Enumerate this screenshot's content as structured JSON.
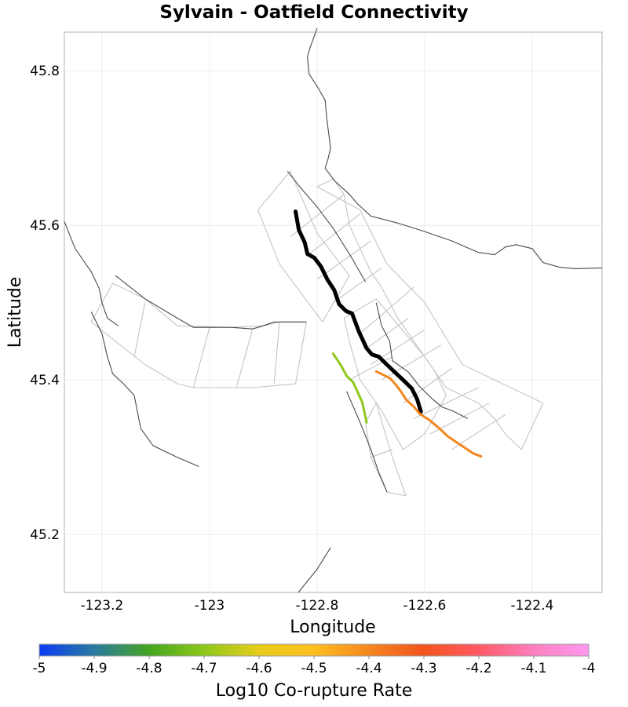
{
  "title": "Sylvain - Oatfield Connectivity",
  "xlabel": "Longitude",
  "ylabel": "Latitude",
  "colorbar": {
    "label": "Log10 Co-rupture Rate",
    "ticks": [
      "-5",
      "-4.9",
      "-4.8",
      "-4.7",
      "-4.6",
      "-4.5",
      "-4.4",
      "-4.3",
      "-4.2",
      "-4.1",
      "-4"
    ],
    "range": [
      -5,
      -4
    ],
    "colors": [
      "#0a3cf5",
      "#2a7aa0",
      "#45a520",
      "#8ec81a",
      "#e7cc1a",
      "#ffbf20",
      "#f5861e",
      "#f2541e",
      "#ff5a64",
      "#ff7fbf",
      "#ff99f0"
    ]
  },
  "x_ticks": [
    "-123.2",
    "-123",
    "-122.8",
    "-122.6",
    "-122.4"
  ],
  "y_ticks": [
    "45.8",
    "45.6",
    "45.4",
    "45.2"
  ],
  "chart_data": {
    "type": "line",
    "title": "Sylvain - Oatfield Connectivity",
    "xlabel": "Longitude",
    "ylabel": "Latitude",
    "xlim": [
      -123.27,
      -122.27
    ],
    "ylim": [
      45.125,
      45.85
    ],
    "grid": true,
    "series": [
      {
        "role": "selected-rupture",
        "color": "#000000",
        "points": [
          [
            -122.84,
            45.618
          ],
          [
            -122.834,
            45.594
          ],
          [
            -122.823,
            45.578
          ],
          [
            -122.818,
            45.563
          ],
          [
            -122.805,
            45.558
          ],
          [
            -122.793,
            45.547
          ],
          [
            -122.781,
            45.53
          ],
          [
            -122.768,
            45.516
          ],
          [
            -122.759,
            45.498
          ],
          [
            -122.746,
            45.489
          ],
          [
            -122.735,
            45.486
          ],
          [
            -122.722,
            45.462
          ],
          [
            -122.708,
            45.441
          ],
          [
            -122.698,
            45.433
          ],
          [
            -122.685,
            45.43
          ],
          [
            -122.672,
            45.421
          ],
          [
            -122.654,
            45.409
          ],
          [
            -122.64,
            45.4
          ],
          [
            -122.624,
            45.389
          ],
          [
            -122.614,
            45.375
          ],
          [
            -122.607,
            45.359
          ]
        ]
      },
      {
        "role": "co-rupture",
        "color": "#8ec81a",
        "log10_rate": -4.65,
        "points": [
          [
            -122.77,
            45.434
          ],
          [
            -122.755,
            45.418
          ],
          [
            -122.745,
            45.405
          ],
          [
            -122.733,
            45.397
          ],
          [
            -122.716,
            45.371
          ],
          [
            -122.708,
            45.345
          ]
        ]
      },
      {
        "role": "co-rupture",
        "color": "#f5861e",
        "log10_rate": -4.33,
        "points": [
          [
            -122.69,
            45.411
          ],
          [
            -122.678,
            45.407
          ],
          [
            -122.664,
            45.402
          ],
          [
            -122.655,
            45.395
          ],
          [
            -122.645,
            45.386
          ],
          [
            -122.634,
            45.374
          ],
          [
            -122.621,
            45.366
          ],
          [
            -122.609,
            45.356
          ],
          [
            -122.591,
            45.348
          ],
          [
            -122.579,
            45.341
          ],
          [
            -122.569,
            45.335
          ],
          [
            -122.557,
            45.327
          ],
          [
            -122.54,
            45.319
          ],
          [
            -122.525,
            45.312
          ],
          [
            -122.51,
            45.305
          ],
          [
            -122.495,
            45.301
          ]
        ]
      }
    ],
    "background_faults": [
      [
        [
          -122.8,
          45.855
        ],
        [
          -122.813,
          45.83
        ],
        [
          -122.818,
          45.818
        ],
        [
          -122.815,
          45.796
        ],
        [
          -122.8,
          45.78
        ],
        [
          -122.785,
          45.762
        ],
        [
          -122.782,
          45.738
        ],
        [
          -122.775,
          45.7
        ],
        [
          -122.78,
          45.685
        ],
        [
          -122.785,
          45.674
        ],
        [
          -122.768,
          45.658
        ],
        [
          -122.74,
          45.64
        ],
        [
          -122.725,
          45.628
        ],
        [
          -122.7,
          45.612
        ],
        [
          -122.65,
          45.603
        ],
        [
          -122.6,
          45.592
        ],
        [
          -122.55,
          45.58
        ],
        [
          -122.5,
          45.565
        ],
        [
          -122.47,
          45.562
        ],
        [
          -122.45,
          45.572
        ],
        [
          -122.43,
          45.575
        ],
        [
          -122.4,
          45.57
        ],
        [
          -122.38,
          45.552
        ],
        [
          -122.35,
          45.546
        ],
        [
          -122.32,
          45.544
        ],
        [
          -122.27,
          45.545
        ]
      ],
      [
        [
          -123.27,
          45.605
        ],
        [
          -123.25,
          45.57
        ],
        [
          -123.22,
          45.54
        ],
        [
          -123.205,
          45.518
        ],
        [
          -123.2,
          45.5
        ],
        [
          -123.19,
          45.48
        ],
        [
          -123.17,
          45.47
        ]
      ],
      [
        [
          -123.22,
          45.488
        ],
        [
          -123.2,
          45.46
        ],
        [
          -123.19,
          45.43
        ],
        [
          -123.18,
          45.408
        ],
        [
          -123.16,
          45.395
        ],
        [
          -123.14,
          45.38
        ],
        [
          -123.133,
          45.355
        ],
        [
          -123.128,
          45.337
        ],
        [
          -123.105,
          45.315
        ],
        [
          -123.06,
          45.3
        ],
        [
          -123.02,
          45.288
        ]
      ],
      [
        [
          -123.175,
          45.535
        ],
        [
          -123.12,
          45.505
        ],
        [
          -123.06,
          45.48
        ],
        [
          -123.03,
          45.468
        ],
        [
          -122.96,
          45.468
        ],
        [
          -122.92,
          45.466
        ],
        [
          -122.9,
          45.47
        ],
        [
          -122.88,
          45.475
        ],
        [
          -122.82,
          45.475
        ]
      ],
      [
        [
          -122.855,
          45.67
        ],
        [
          -122.83,
          45.648
        ],
        [
          -122.8,
          45.624
        ],
        [
          -122.77,
          45.596
        ],
        [
          -122.74,
          45.563
        ],
        [
          -122.71,
          45.527
        ]
      ],
      [
        [
          -122.69,
          45.5
        ],
        [
          -122.68,
          45.47
        ],
        [
          -122.665,
          45.45
        ],
        [
          -122.66,
          45.425
        ],
        [
          -122.63,
          45.41
        ],
        [
          -122.61,
          45.392
        ],
        [
          -122.585,
          45.375
        ],
        [
          -122.568,
          45.365
        ],
        [
          -122.548,
          45.36
        ],
        [
          -122.52,
          45.35
        ]
      ],
      [
        [
          -122.745,
          45.385
        ],
        [
          -122.72,
          45.345
        ],
        [
          -122.7,
          45.31
        ],
        [
          -122.685,
          45.28
        ],
        [
          -122.67,
          45.255
        ]
      ],
      [
        [
          -122.835,
          45.125
        ],
        [
          -122.8,
          45.155
        ],
        [
          -122.775,
          45.183
        ]
      ]
    ],
    "mesh_outlines": [
      [
        [
          -122.91,
          45.62
        ],
        [
          -122.85,
          45.67
        ],
        [
          -122.8,
          45.59
        ],
        [
          -122.74,
          45.535
        ],
        [
          -122.79,
          45.475
        ],
        [
          -122.87,
          45.55
        ],
        [
          -122.91,
          45.62
        ]
      ],
      [
        [
          -122.8,
          45.65
        ],
        [
          -122.77,
          45.66
        ],
        [
          -122.75,
          45.64
        ],
        [
          -122.74,
          45.6
        ],
        [
          -122.72,
          45.57
        ],
        [
          -122.7,
          45.54
        ],
        [
          -122.68,
          45.52
        ],
        [
          -122.65,
          45.48
        ],
        [
          -122.61,
          45.44
        ],
        [
          -122.56,
          45.39
        ],
        [
          -122.5,
          45.37
        ],
        [
          -122.47,
          45.35
        ],
        [
          -122.45,
          45.33
        ],
        [
          -122.42,
          45.31
        ],
        [
          -122.38,
          45.37
        ],
        [
          -122.53,
          45.42
        ],
        [
          -122.6,
          45.5
        ],
        [
          -122.67,
          45.55
        ],
        [
          -122.72,
          45.62
        ],
        [
          -122.8,
          45.65
        ]
      ],
      [
        [
          -123.22,
          45.475
        ],
        [
          -123.18,
          45.525
        ],
        [
          -123.12,
          45.505
        ],
        [
          -123.06,
          45.47
        ],
        [
          -122.96,
          45.468
        ],
        [
          -122.9,
          45.47
        ],
        [
          -122.87,
          45.475
        ],
        [
          -122.82,
          45.475
        ],
        [
          -122.84,
          45.395
        ],
        [
          -122.92,
          45.39
        ],
        [
          -122.95,
          45.39
        ],
        [
          -123.03,
          45.39
        ],
        [
          -123.06,
          45.395
        ],
        [
          -123.12,
          45.42
        ],
        [
          -123.22,
          45.475
        ]
      ],
      [
        [
          -122.75,
          45.48
        ],
        [
          -122.69,
          45.505
        ],
        [
          -122.63,
          45.455
        ],
        [
          -122.6,
          45.43
        ],
        [
          -122.58,
          45.41
        ],
        [
          -122.56,
          45.38
        ],
        [
          -122.6,
          45.33
        ],
        [
          -122.64,
          45.31
        ],
        [
          -122.68,
          45.36
        ],
        [
          -122.72,
          45.4
        ],
        [
          -122.74,
          45.45
        ],
        [
          -122.75,
          45.48
        ]
      ],
      [
        [
          -122.71,
          45.345
        ],
        [
          -122.69,
          45.37
        ],
        [
          -122.66,
          45.3
        ],
        [
          -122.635,
          45.25
        ],
        [
          -122.67,
          45.255
        ],
        [
          -122.7,
          45.3
        ],
        [
          -122.71,
          45.345
        ]
      ]
    ],
    "mesh_dividers": [
      [
        [
          -122.85,
          45.585
        ],
        [
          -122.75,
          45.64
        ]
      ],
      [
        [
          -122.82,
          45.56
        ],
        [
          -122.72,
          45.615
        ]
      ],
      [
        [
          -122.8,
          45.53
        ],
        [
          -122.7,
          45.58
        ]
      ],
      [
        [
          -122.77,
          45.5
        ],
        [
          -122.68,
          45.545
        ]
      ],
      [
        [
          -122.72,
          45.46
        ],
        [
          -122.62,
          45.52
        ]
      ],
      [
        [
          -122.71,
          45.44
        ],
        [
          -122.63,
          45.48
        ]
      ],
      [
        [
          -122.7,
          45.42
        ],
        [
          -122.6,
          45.465
        ]
      ],
      [
        [
          -122.68,
          45.4
        ],
        [
          -122.57,
          45.445
        ]
      ],
      [
        [
          -122.64,
          45.37
        ],
        [
          -122.55,
          45.415
        ]
      ],
      [
        [
          -122.62,
          45.35
        ],
        [
          -122.5,
          45.39
        ]
      ],
      [
        [
          -122.59,
          45.33
        ],
        [
          -122.48,
          45.37
        ]
      ],
      [
        [
          -122.55,
          45.31
        ],
        [
          -122.45,
          45.355
        ]
      ],
      [
        [
          -123.14,
          45.43
        ],
        [
          -123.12,
          45.5
        ]
      ],
      [
        [
          -123.03,
          45.39
        ],
        [
          -123.0,
          45.468
        ]
      ],
      [
        [
          -122.95,
          45.39
        ],
        [
          -122.92,
          45.466
        ]
      ],
      [
        [
          -122.88,
          45.395
        ],
        [
          -122.87,
          45.475
        ]
      ],
      [
        [
          -122.74,
          45.4
        ],
        [
          -122.66,
          45.43
        ]
      ],
      [
        [
          -122.7,
          45.3
        ],
        [
          -122.66,
          45.31
        ]
      ]
    ]
  }
}
